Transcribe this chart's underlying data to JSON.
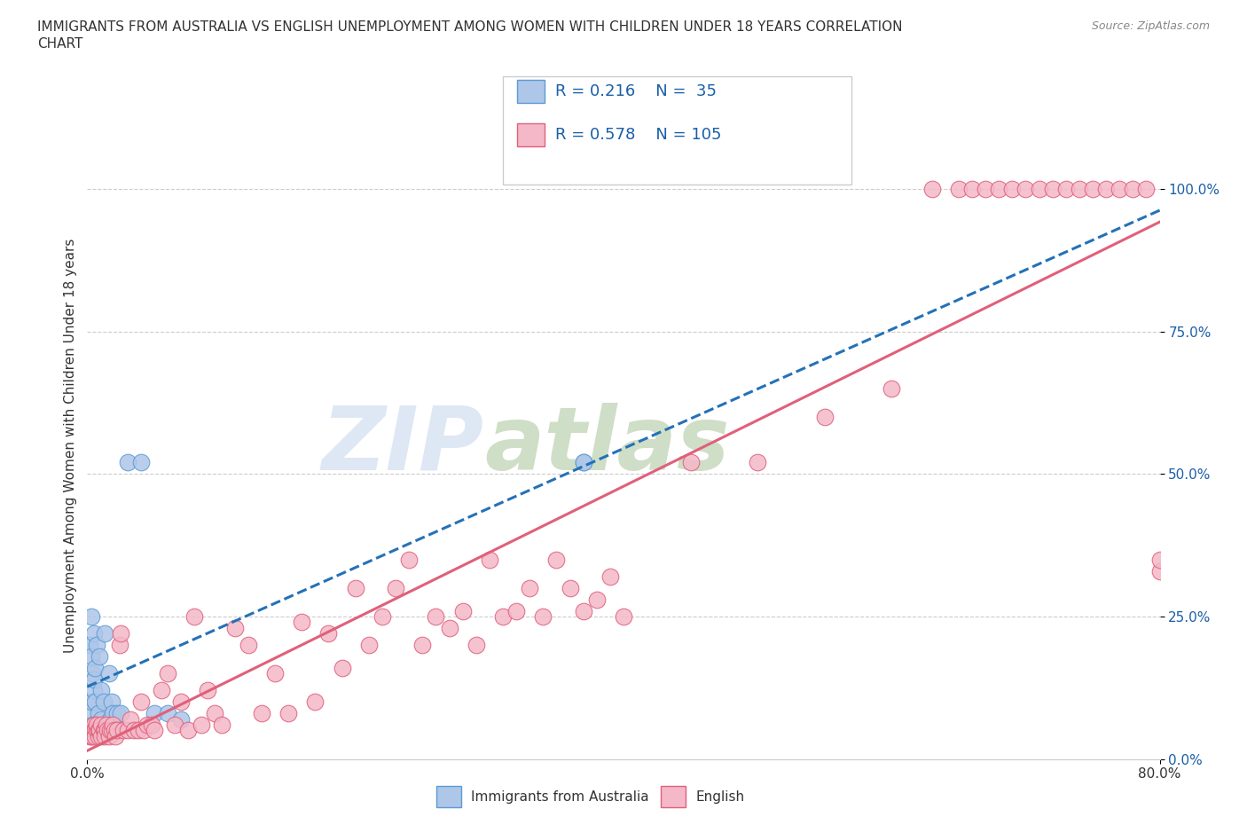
{
  "title_line1": "IMMIGRANTS FROM AUSTRALIA VS ENGLISH UNEMPLOYMENT AMONG WOMEN WITH CHILDREN UNDER 18 YEARS CORRELATION",
  "title_line2": "CHART",
  "source": "Source: ZipAtlas.com",
  "ylabel": "Unemployment Among Women with Children Under 18 years",
  "xmin": 0.0,
  "xmax": 0.8,
  "ymin": 0.0,
  "ymax": 1.1,
  "ytick_positions": [
    0.0,
    0.25,
    0.5,
    0.75,
    1.0
  ],
  "ytick_labels": [
    "0.0%",
    "25.0%",
    "50.0%",
    "75.0%",
    "100.0%"
  ],
  "series": [
    {
      "name": "Immigrants from Australia",
      "R": 0.216,
      "N": 35,
      "face_color": "#aec6e8",
      "edge_color": "#5b9bd5",
      "line_color": "#2471b8",
      "line_style": "--",
      "x": [
        0.001,
        0.002,
        0.002,
        0.003,
        0.003,
        0.003,
        0.004,
        0.004,
        0.005,
        0.005,
        0.005,
        0.006,
        0.006,
        0.007,
        0.008,
        0.009,
        0.01,
        0.01,
        0.012,
        0.013,
        0.015,
        0.016,
        0.017,
        0.018,
        0.019,
        0.02,
        0.022,
        0.025,
        0.03,
        0.04,
        0.05,
        0.06,
        0.07,
        0.37,
        0.37
      ],
      "y": [
        0.05,
        0.08,
        0.2,
        0.1,
        0.18,
        0.25,
        0.06,
        0.15,
        0.12,
        0.22,
        0.14,
        0.16,
        0.1,
        0.2,
        0.08,
        0.18,
        0.07,
        0.12,
        0.1,
        0.22,
        0.05,
        0.15,
        0.07,
        0.1,
        0.08,
        0.06,
        0.08,
        0.08,
        0.52,
        0.52,
        0.08,
        0.08,
        0.07,
        0.52,
        0.52
      ]
    },
    {
      "name": "English",
      "R": 0.578,
      "N": 105,
      "face_color": "#f4b8c8",
      "edge_color": "#e0607a",
      "line_color": "#e0607a",
      "line_style": "-",
      "x": [
        0.001,
        0.002,
        0.002,
        0.003,
        0.003,
        0.004,
        0.004,
        0.005,
        0.005,
        0.006,
        0.006,
        0.007,
        0.007,
        0.008,
        0.008,
        0.009,
        0.009,
        0.01,
        0.01,
        0.012,
        0.013,
        0.013,
        0.014,
        0.015,
        0.016,
        0.017,
        0.018,
        0.019,
        0.02,
        0.021,
        0.022,
        0.024,
        0.025,
        0.027,
        0.03,
        0.032,
        0.035,
        0.038,
        0.04,
        0.042,
        0.045,
        0.048,
        0.05,
        0.055,
        0.06,
        0.065,
        0.07,
        0.075,
        0.08,
        0.085,
        0.09,
        0.095,
        0.1,
        0.11,
        0.12,
        0.13,
        0.14,
        0.15,
        0.16,
        0.17,
        0.18,
        0.19,
        0.2,
        0.21,
        0.22,
        0.23,
        0.24,
        0.25,
        0.26,
        0.27,
        0.28,
        0.29,
        0.3,
        0.31,
        0.32,
        0.33,
        0.34,
        0.35,
        0.36,
        0.37,
        0.38,
        0.39,
        0.4,
        0.45,
        0.5,
        0.55,
        0.6,
        0.63,
        0.65,
        0.66,
        0.67,
        0.68,
        0.69,
        0.7,
        0.71,
        0.72,
        0.73,
        0.74,
        0.75,
        0.76,
        0.77,
        0.78,
        0.79,
        0.8,
        0.8
      ],
      "y": [
        0.05,
        0.04,
        0.05,
        0.05,
        0.04,
        0.05,
        0.04,
        0.06,
        0.05,
        0.05,
        0.04,
        0.05,
        0.06,
        0.04,
        0.05,
        0.05,
        0.05,
        0.04,
        0.06,
        0.05,
        0.05,
        0.04,
        0.06,
        0.05,
        0.04,
        0.05,
        0.05,
        0.06,
        0.05,
        0.04,
        0.05,
        0.2,
        0.22,
        0.05,
        0.05,
        0.07,
        0.05,
        0.05,
        0.1,
        0.05,
        0.06,
        0.06,
        0.05,
        0.12,
        0.15,
        0.06,
        0.1,
        0.05,
        0.25,
        0.06,
        0.12,
        0.08,
        0.06,
        0.23,
        0.2,
        0.08,
        0.15,
        0.08,
        0.24,
        0.1,
        0.22,
        0.16,
        0.3,
        0.2,
        0.25,
        0.3,
        0.35,
        0.2,
        0.25,
        0.23,
        0.26,
        0.2,
        0.35,
        0.25,
        0.26,
        0.3,
        0.25,
        0.35,
        0.3,
        0.26,
        0.28,
        0.32,
        0.25,
        0.52,
        0.52,
        0.6,
        0.65,
        1.0,
        1.0,
        1.0,
        1.0,
        1.0,
        1.0,
        1.0,
        1.0,
        1.0,
        1.0,
        1.0,
        1.0,
        1.0,
        1.0,
        1.0,
        1.0,
        0.33,
        0.35
      ]
    }
  ],
  "background_color": "#ffffff",
  "grid_color": "#cccccc",
  "title_color": "#333333",
  "axis_color": "#333333",
  "tick_color": "#1a5fa8",
  "watermark_zip": "ZIP",
  "watermark_atlas": "atlas",
  "watermark_color_zip": "#c8d8ee",
  "watermark_color_atlas": "#b0c8a0"
}
